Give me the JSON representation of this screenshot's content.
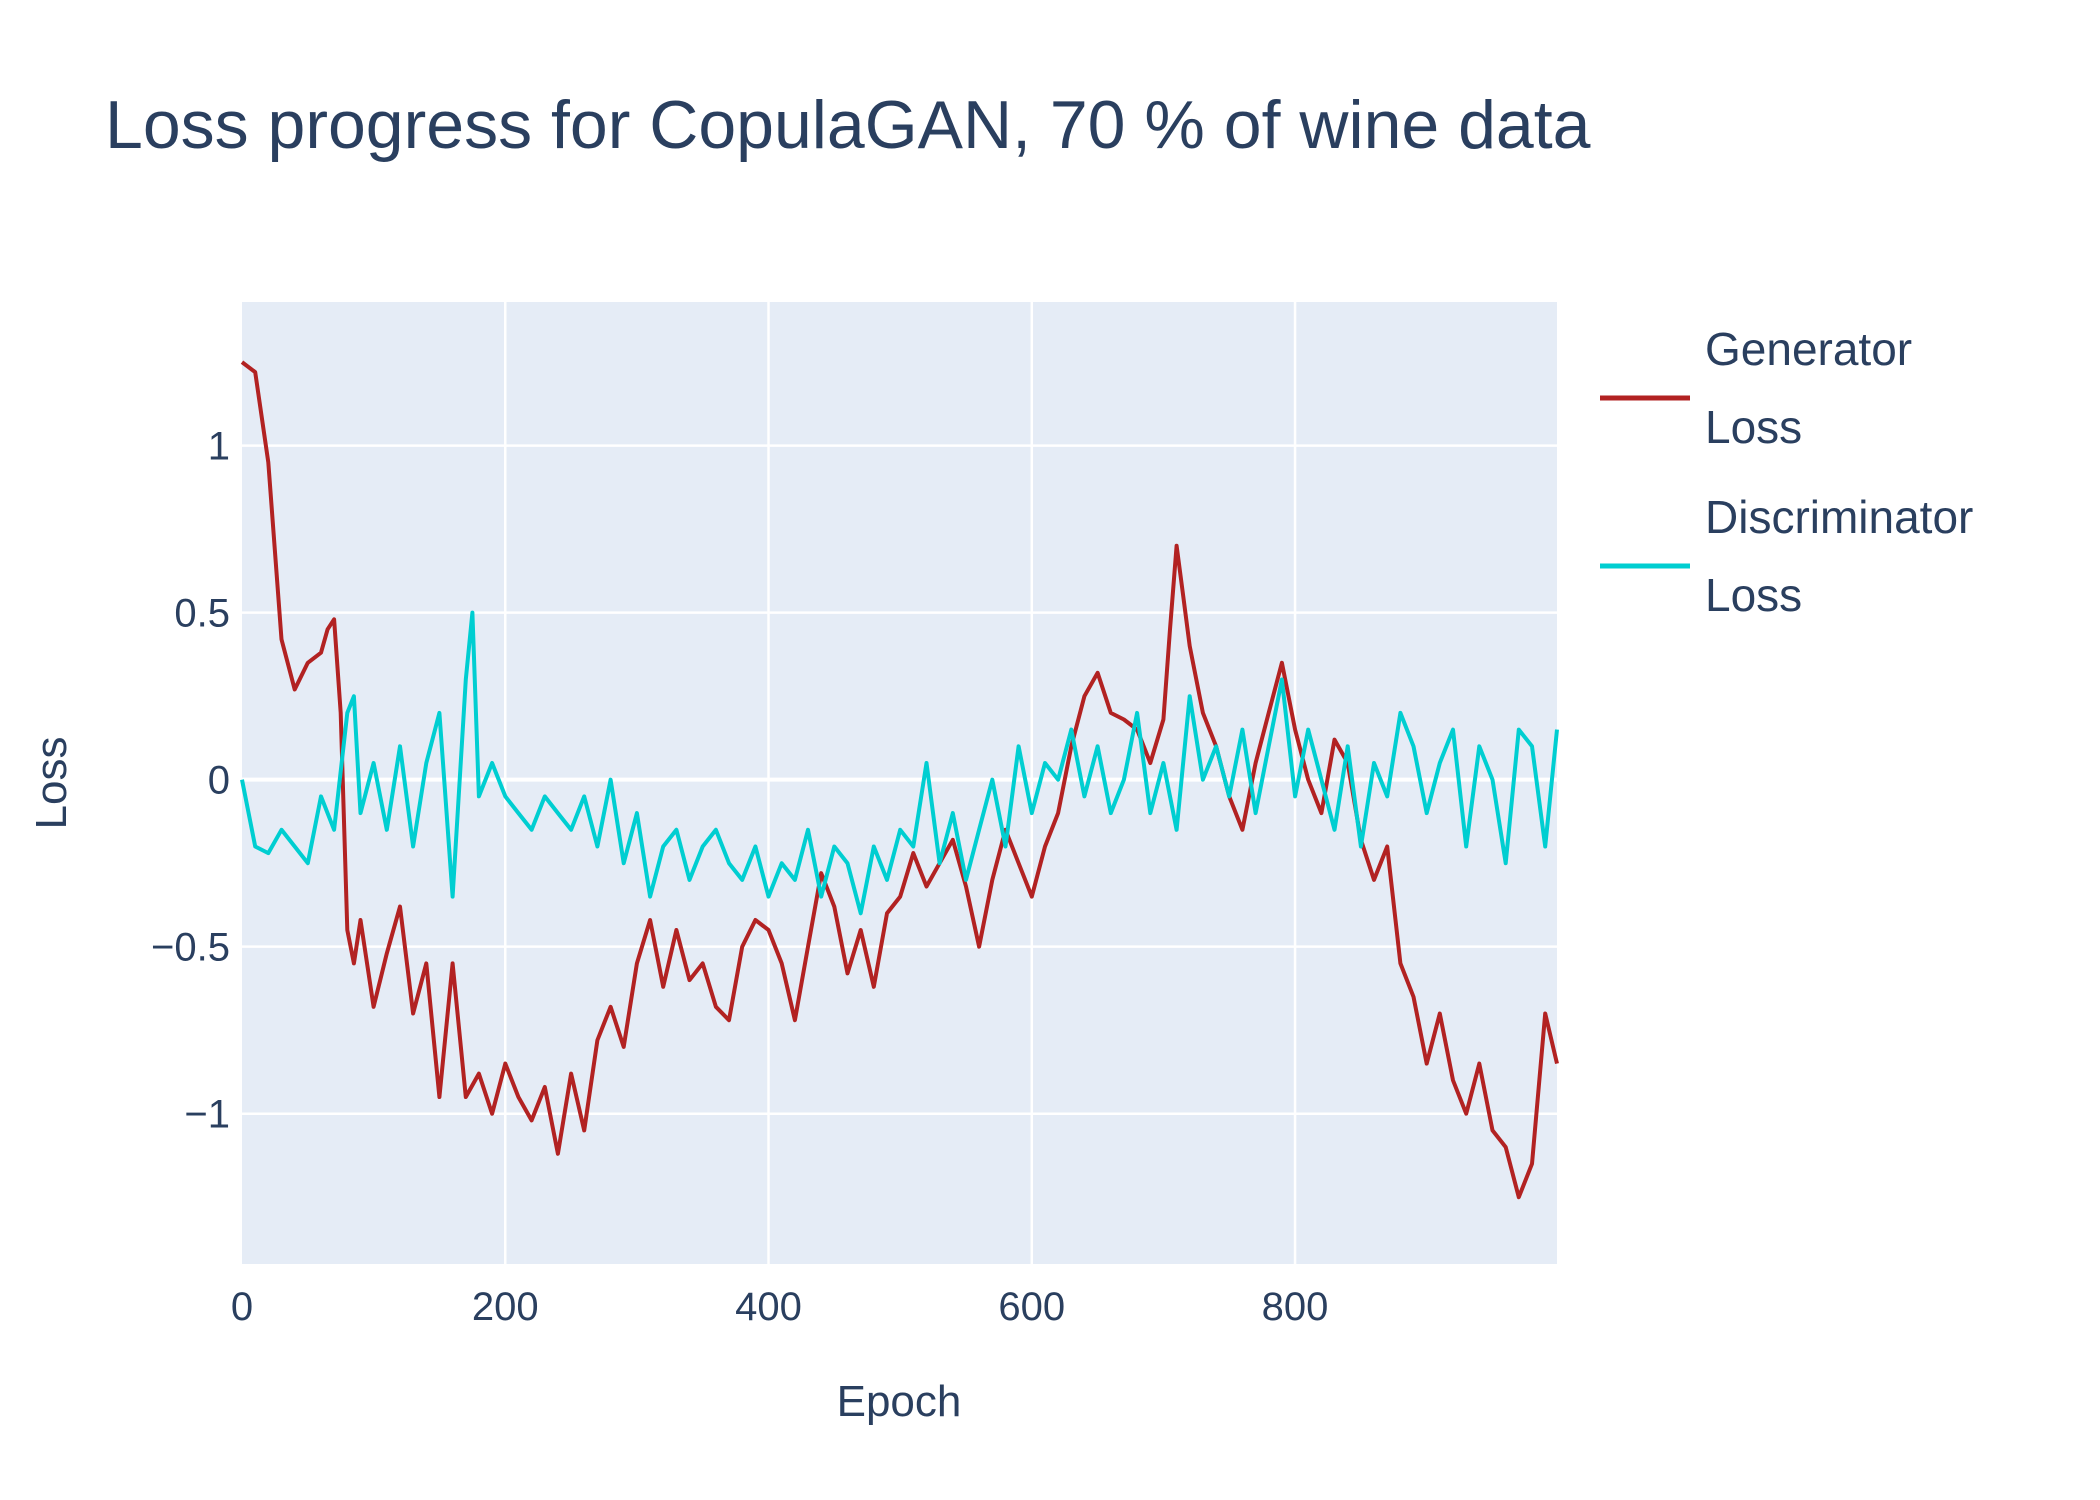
{
  "chart_data": {
    "type": "line",
    "title": "Loss progress for CopulaGAN, 70 % of wine data",
    "xlabel": "Epoch",
    "ylabel": "Loss",
    "xlim": [
      0,
      999
    ],
    "ylim": [
      -1.45,
      1.43
    ],
    "x_ticks": [
      0,
      200,
      400,
      600,
      800
    ],
    "x_tick_labels": [
      "0",
      "200",
      "400",
      "600",
      "800"
    ],
    "y_ticks": [
      1,
      0.5,
      0,
      -0.5,
      -1
    ],
    "y_tick_labels": [
      "1",
      "0.5",
      "0",
      "−0.5",
      "−1"
    ],
    "grid": true,
    "legend_position": "top-right outside",
    "background_color": "#e5ecf6",
    "series": [
      {
        "name": "Generator\n Loss",
        "color": "#b22222",
        "x": [
          0,
          10,
          20,
          30,
          40,
          50,
          60,
          65,
          70,
          75,
          80,
          85,
          90,
          100,
          110,
          120,
          130,
          140,
          150,
          160,
          170,
          180,
          190,
          200,
          210,
          220,
          230,
          240,
          250,
          260,
          270,
          280,
          290,
          300,
          310,
          320,
          330,
          340,
          350,
          360,
          370,
          380,
          390,
          400,
          410,
          420,
          430,
          440,
          450,
          460,
          470,
          480,
          490,
          500,
          510,
          520,
          530,
          540,
          550,
          560,
          570,
          580,
          590,
          600,
          610,
          620,
          630,
          640,
          650,
          660,
          670,
          680,
          690,
          700,
          705,
          710,
          715,
          720,
          730,
          740,
          750,
          760,
          770,
          780,
          790,
          800,
          810,
          820,
          830,
          840,
          850,
          860,
          870,
          880,
          890,
          900,
          910,
          920,
          930,
          940,
          950,
          960,
          970,
          980,
          990,
          999
        ],
        "y": [
          1.25,
          1.22,
          0.95,
          0.42,
          0.27,
          0.35,
          0.38,
          0.45,
          0.48,
          0.2,
          -0.45,
          -0.55,
          -0.42,
          -0.68,
          -0.52,
          -0.38,
          -0.7,
          -0.55,
          -0.95,
          -0.55,
          -0.95,
          -0.88,
          -1.0,
          -0.85,
          -0.95,
          -1.02,
          -0.92,
          -1.12,
          -0.88,
          -1.05,
          -0.78,
          -0.68,
          -0.8,
          -0.55,
          -0.42,
          -0.62,
          -0.45,
          -0.6,
          -0.55,
          -0.68,
          -0.72,
          -0.5,
          -0.42,
          -0.45,
          -0.55,
          -0.72,
          -0.5,
          -0.28,
          -0.38,
          -0.58,
          -0.45,
          -0.62,
          -0.4,
          -0.35,
          -0.22,
          -0.32,
          -0.25,
          -0.18,
          -0.32,
          -0.5,
          -0.3,
          -0.15,
          -0.25,
          -0.35,
          -0.2,
          -0.1,
          0.1,
          0.25,
          0.32,
          0.2,
          0.18,
          0.15,
          0.05,
          0.18,
          0.45,
          0.7,
          0.55,
          0.4,
          0.2,
          0.1,
          -0.05,
          -0.15,
          0.05,
          0.2,
          0.35,
          0.15,
          0.0,
          -0.1,
          0.12,
          0.05,
          -0.18,
          -0.3,
          -0.2,
          -0.55,
          -0.65,
          -0.85,
          -0.7,
          -0.9,
          -1.0,
          -0.85,
          -1.05,
          -1.1,
          -1.25,
          -1.15,
          -0.7,
          -0.85
        ]
      },
      {
        "name": "Discriminator\n Loss",
        "color": "#00ced1",
        "x": [
          0,
          10,
          20,
          30,
          40,
          50,
          60,
          70,
          80,
          85,
          90,
          100,
          110,
          120,
          130,
          140,
          150,
          160,
          170,
          175,
          180,
          190,
          200,
          210,
          220,
          230,
          240,
          250,
          260,
          270,
          280,
          290,
          300,
          310,
          320,
          330,
          340,
          350,
          360,
          370,
          380,
          390,
          400,
          410,
          420,
          430,
          440,
          450,
          460,
          470,
          480,
          490,
          500,
          510,
          520,
          530,
          540,
          550,
          560,
          570,
          580,
          590,
          600,
          610,
          620,
          630,
          640,
          650,
          660,
          670,
          680,
          690,
          700,
          710,
          720,
          730,
          740,
          750,
          760,
          770,
          780,
          790,
          800,
          810,
          820,
          830,
          840,
          850,
          860,
          870,
          880,
          890,
          900,
          910,
          920,
          930,
          940,
          950,
          960,
          970,
          980,
          990,
          999
        ],
        "y": [
          0.0,
          -0.2,
          -0.22,
          -0.15,
          -0.2,
          -0.25,
          -0.05,
          -0.15,
          0.2,
          0.25,
          -0.1,
          0.05,
          -0.15,
          0.1,
          -0.2,
          0.05,
          0.2,
          -0.35,
          0.3,
          0.5,
          -0.05,
          0.05,
          -0.05,
          -0.1,
          -0.15,
          -0.05,
          -0.1,
          -0.15,
          -0.05,
          -0.2,
          0.0,
          -0.25,
          -0.1,
          -0.35,
          -0.2,
          -0.15,
          -0.3,
          -0.2,
          -0.15,
          -0.25,
          -0.3,
          -0.2,
          -0.35,
          -0.25,
          -0.3,
          -0.15,
          -0.35,
          -0.2,
          -0.25,
          -0.4,
          -0.2,
          -0.3,
          -0.15,
          -0.2,
          0.05,
          -0.25,
          -0.1,
          -0.3,
          -0.15,
          0.0,
          -0.2,
          0.1,
          -0.1,
          0.05,
          0.0,
          0.15,
          -0.05,
          0.1,
          -0.1,
          0.0,
          0.2,
          -0.1,
          0.05,
          -0.15,
          0.25,
          0.0,
          0.1,
          -0.05,
          0.15,
          -0.1,
          0.1,
          0.3,
          -0.05,
          0.15,
          0.0,
          -0.15,
          0.1,
          -0.2,
          0.05,
          -0.05,
          0.2,
          0.1,
          -0.1,
          0.05,
          0.15,
          -0.2,
          0.1,
          0.0,
          -0.25,
          0.15,
          0.1,
          -0.2,
          0.15
        ]
      }
    ]
  }
}
